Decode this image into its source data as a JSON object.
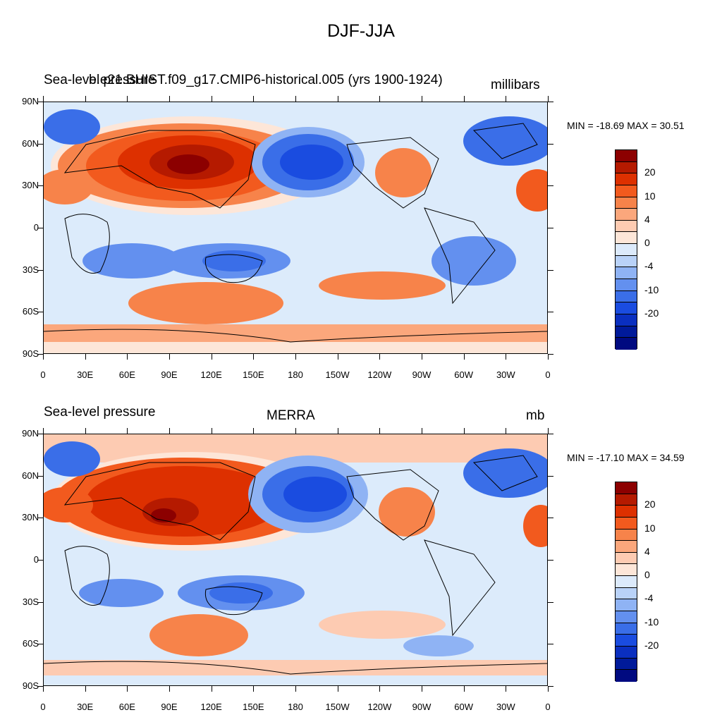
{
  "title": "DJF-JJA",
  "panels": [
    {
      "left_label": "Sea-level pressure",
      "center_label": "b.e21.BHIST.f09_g17.CMIP6-historical.005 (yrs 1900-1924)",
      "right_label": "millibars",
      "minmax": "MIN = -18.69 MAX =  30.51"
    },
    {
      "left_label": "Sea-level pressure",
      "center_label": "MERRA",
      "right_label": "mb",
      "minmax": "MIN = -17.10 MAX =  34.59"
    }
  ],
  "lat_ticks": [
    "90N",
    "60N",
    "30N",
    "0",
    "30S",
    "60S",
    "90S"
  ],
  "lon_ticks": [
    "0",
    "30E",
    "60E",
    "90E",
    "120E",
    "150E",
    "180",
    "150W",
    "120W",
    "90W",
    "60W",
    "30W",
    "0"
  ],
  "colorbar": {
    "labels": [
      "20",
      "10",
      "4",
      "0",
      "-4",
      "-10",
      "-20"
    ],
    "colors": [
      "#8c0000",
      "#b51a00",
      "#dd3000",
      "#f25a1e",
      "#f7834a",
      "#fba77c",
      "#fdcbb2",
      "#fde6d8",
      "#dceafb",
      "#b9d2f8",
      "#8fb3f4",
      "#6390ef",
      "#3a6ee8",
      "#1a4ce0",
      "#0a2fc0",
      "#001a9a",
      "#000a80"
    ]
  },
  "colors": {
    "ocean_base": "#dcebfb",
    "coast": "#000000"
  }
}
